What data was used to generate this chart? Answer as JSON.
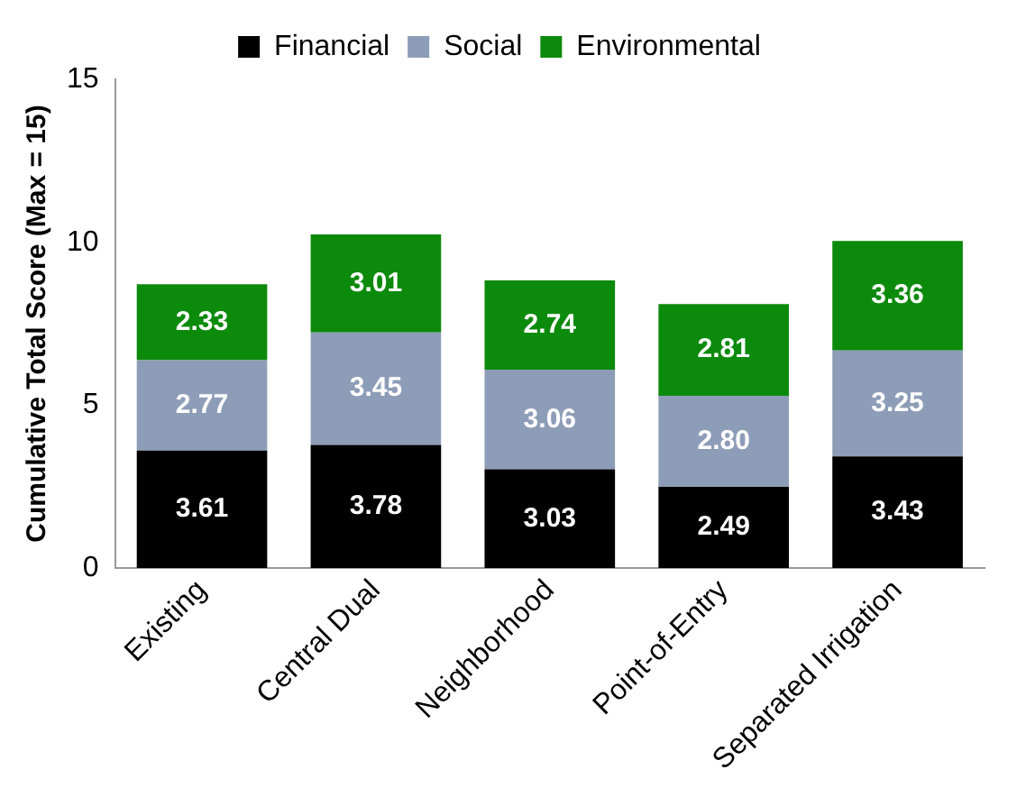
{
  "chart_data": {
    "type": "bar",
    "stacked": true,
    "ylabel": "Cumulative Total Score (Max = 15)",
    "categories": [
      "Existing",
      "Central Dual",
      "Neighborhood",
      "Point-of-Entry",
      "Separated Irrigation"
    ],
    "series": [
      {
        "name": "Financial",
        "color": "#000000",
        "values": [
          3.61,
          3.78,
          3.03,
          2.49,
          3.43
        ],
        "value_labels": [
          "3.61",
          "3.78",
          "3.03",
          "2.49",
          "3.43"
        ]
      },
      {
        "name": "Social",
        "color": "#8e9db7",
        "values": [
          2.77,
          3.45,
          3.06,
          2.8,
          3.25
        ],
        "value_labels": [
          "2.77",
          "3.45",
          "3.06",
          "2.80",
          "3.25"
        ]
      },
      {
        "name": "Environmental",
        "color": "#0c8a0c",
        "values": [
          2.33,
          3.01,
          2.74,
          2.81,
          3.36
        ],
        "value_labels": [
          "2.33",
          "3.01",
          "2.74",
          "2.81",
          "3.36"
        ]
      }
    ],
    "ylim": [
      0,
      15
    ],
    "yticks": [
      0,
      5,
      10,
      15
    ],
    "grid": false,
    "legend": "top"
  }
}
